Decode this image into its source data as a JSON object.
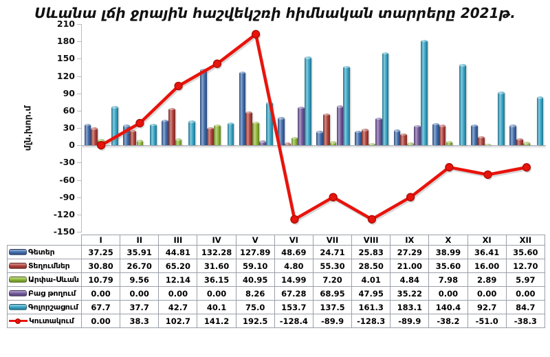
{
  "chart_data": {
    "type": "bar+line",
    "title": "Սևանա լճի ջրային հաշվեկշռի հիմնական տարրերը 2021թ.",
    "ylabel": "մլն.խոր.մ",
    "ylim": [
      -150,
      210
    ],
    "ytick_step": 30,
    "grid": false,
    "legend_position": "table-left-column",
    "categories": [
      "I",
      "II",
      "III",
      "IV",
      "V",
      "VI",
      "VII",
      "VIII",
      "IX",
      "X",
      "XI",
      "XII"
    ],
    "series": [
      {
        "name": "Գետեր",
        "key": "rivers",
        "type": "bar",
        "color": "#3A68AC",
        "values": [
          37.25,
          35.91,
          44.81,
          132.28,
          127.89,
          48.69,
          24.71,
          25.83,
          27.29,
          38.99,
          36.41,
          35.6
        ],
        "display": [
          "37.25",
          "35.91",
          "44.81",
          "132.28",
          "127.89",
          "48.69",
          "24.71",
          "25.83",
          "27.29",
          "38.99",
          "36.41",
          "35.60"
        ]
      },
      {
        "name": "Տեղումներ",
        "key": "precipitation",
        "type": "bar",
        "color": "#B03A33",
        "values": [
          30.8,
          26.7,
          65.2,
          31.6,
          59.1,
          4.8,
          55.3,
          28.5,
          21.0,
          35.6,
          16.0,
          12.7
        ],
        "display": [
          "30.80",
          "26.70",
          "65.20",
          "31.60",
          "59.10",
          "4.80",
          "55.30",
          "28.50",
          "21.00",
          "35.60",
          "16.00",
          "12.70"
        ]
      },
      {
        "name": "Արփա-Սևան",
        "key": "arpa-sevan",
        "type": "bar",
        "color": "#8CB72F",
        "values": [
          10.79,
          9.56,
          12.14,
          36.15,
          40.95,
          14.99,
          7.2,
          4.01,
          4.84,
          7.98,
          2.89,
          5.97
        ],
        "display": [
          "10.79",
          "9.56",
          "12.14",
          "36.15",
          "40.95",
          "14.99",
          "7.20",
          "4.01",
          "4.84",
          "7.98",
          "2.89",
          "5.97"
        ]
      },
      {
        "name": "Բաց թողում",
        "key": "release",
        "type": "bar",
        "color": "#6F549C",
        "values": [
          0,
          0,
          0,
          0,
          8.26,
          67.28,
          68.95,
          47.95,
          35.22,
          0,
          0,
          0
        ],
        "display": [
          "0.00",
          "0.00",
          "0.00",
          "0.00",
          "8.26",
          "67.28",
          "68.95",
          "47.95",
          "35.22",
          "0.00",
          "0.00",
          "0.00"
        ]
      },
      {
        "name": "Գոլորշացում",
        "key": "evaporation",
        "type": "bar",
        "color": "#2EA3C6",
        "values": [
          67.7,
          37.7,
          42.7,
          40.1,
          75.0,
          153.7,
          137.5,
          161.3,
          183.1,
          140.4,
          92.7,
          84.7
        ],
        "display": [
          "67.7",
          "37.7",
          "42.7",
          "40.1",
          "75.0",
          "153.7",
          "137.5",
          "161.3",
          "183.1",
          "140.4",
          "92.7",
          "84.7"
        ]
      },
      {
        "name": "Կուտակում",
        "key": "accumulation",
        "type": "line",
        "color": "#E8130B",
        "marker_edge": "#A80D06",
        "values": [
          0,
          38.3,
          102.7,
          141.2,
          192.5,
          -128.4,
          -89.9,
          -128.3,
          -89.9,
          -38.2,
          -51.0,
          -38.3
        ],
        "display": [
          "0.00",
          "38.3",
          "102.7",
          "141.2",
          "192.5",
          "-128.4",
          "-89.9",
          "-128.3",
          "-89.9",
          "-38.2",
          "-51.0",
          "-38.3"
        ]
      }
    ]
  }
}
